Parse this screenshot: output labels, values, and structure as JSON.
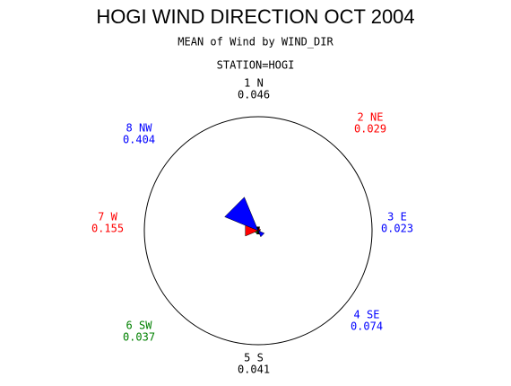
{
  "chart_data": {
    "type": "windrose",
    "title": "HOGI WIND DIRECTION OCT 2004",
    "subtitle": "MEAN of Wind by WIND_DIR",
    "station": "STATION=HOGI",
    "categories": [
      "1 N",
      "2 NE",
      "3 E",
      "4 SE",
      "5 S",
      "6 SW",
      "7 W",
      "8 NW"
    ],
    "values": [
      0.046,
      0.029,
      0.023,
      0.074,
      0.041,
      0.037,
      0.155,
      0.404
    ],
    "colors": [
      "#000000",
      "#ff0000",
      "#0000ff",
      "#0000ff",
      "#000000",
      "#008000",
      "#ff0000",
      "#0000ff"
    ]
  }
}
